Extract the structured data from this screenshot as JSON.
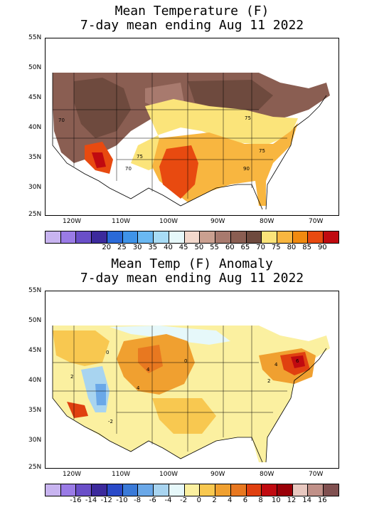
{
  "maps": [
    {
      "title_line1": "Mean Temperature (F)",
      "title_line2": "7-day mean ending Aug 11 2022",
      "lat_labels": [
        "55N",
        "50N",
        "45N",
        "40N",
        "35N",
        "30N",
        "25N"
      ],
      "lon_labels": [
        "120W",
        "110W",
        "100W",
        "90W",
        "80W",
        "70W"
      ],
      "contour_labels": [
        "70",
        "75",
        "75",
        "70",
        "75",
        "90"
      ],
      "legend": {
        "colors": [
          "#c8b4f0",
          "#9a7be6",
          "#6a4fc8",
          "#3c2a9c",
          "#2a6ad8",
          "#3f93e8",
          "#6ab8f2",
          "#a8dcf6",
          "#e6f8fa",
          "#f2d8cc",
          "#caa090",
          "#a87a6e",
          "#8a5e52",
          "#6e4a3e",
          "#fbe47a",
          "#f8b640",
          "#f08a10",
          "#e84a10",
          "#c00a10"
        ],
        "labels": [
          "20",
          "25",
          "30",
          "35",
          "40",
          "45",
          "50",
          "55",
          "60",
          "65",
          "70",
          "75",
          "80",
          "85",
          "90"
        ]
      }
    },
    {
      "title_line1": "Mean Temp (F) Anomaly",
      "title_line2": "7-day mean ending Aug 11 2022",
      "lat_labels": [
        "55N",
        "50N",
        "45N",
        "40N",
        "35N",
        "30N",
        "25N"
      ],
      "lon_labels": [
        "120W",
        "110W",
        "100W",
        "90W",
        "80W",
        "70W"
      ],
      "contour_labels": [
        "0",
        "2",
        "4",
        "4",
        "-2",
        "0",
        "4",
        "2",
        "6"
      ],
      "legend": {
        "colors": [
          "#c8b4f0",
          "#9a7be6",
          "#6a4fc8",
          "#3c2a9c",
          "#2a4ac8",
          "#3a7ad8",
          "#6aa8e8",
          "#a8d4f0",
          "#e6f8fa",
          "#fbf0a0",
          "#f8c850",
          "#f0a030",
          "#e87820",
          "#e04010",
          "#c00a10",
          "#9a0008",
          "#e8c8c0",
          "#c09088",
          "#805050"
        ],
        "labels": [
          "-16",
          "-14",
          "-12",
          "-10",
          "-8",
          "-6",
          "-4",
          "-2",
          "0",
          "2",
          "4",
          "6",
          "8",
          "10",
          "12",
          "14",
          "16"
        ]
      }
    }
  ]
}
